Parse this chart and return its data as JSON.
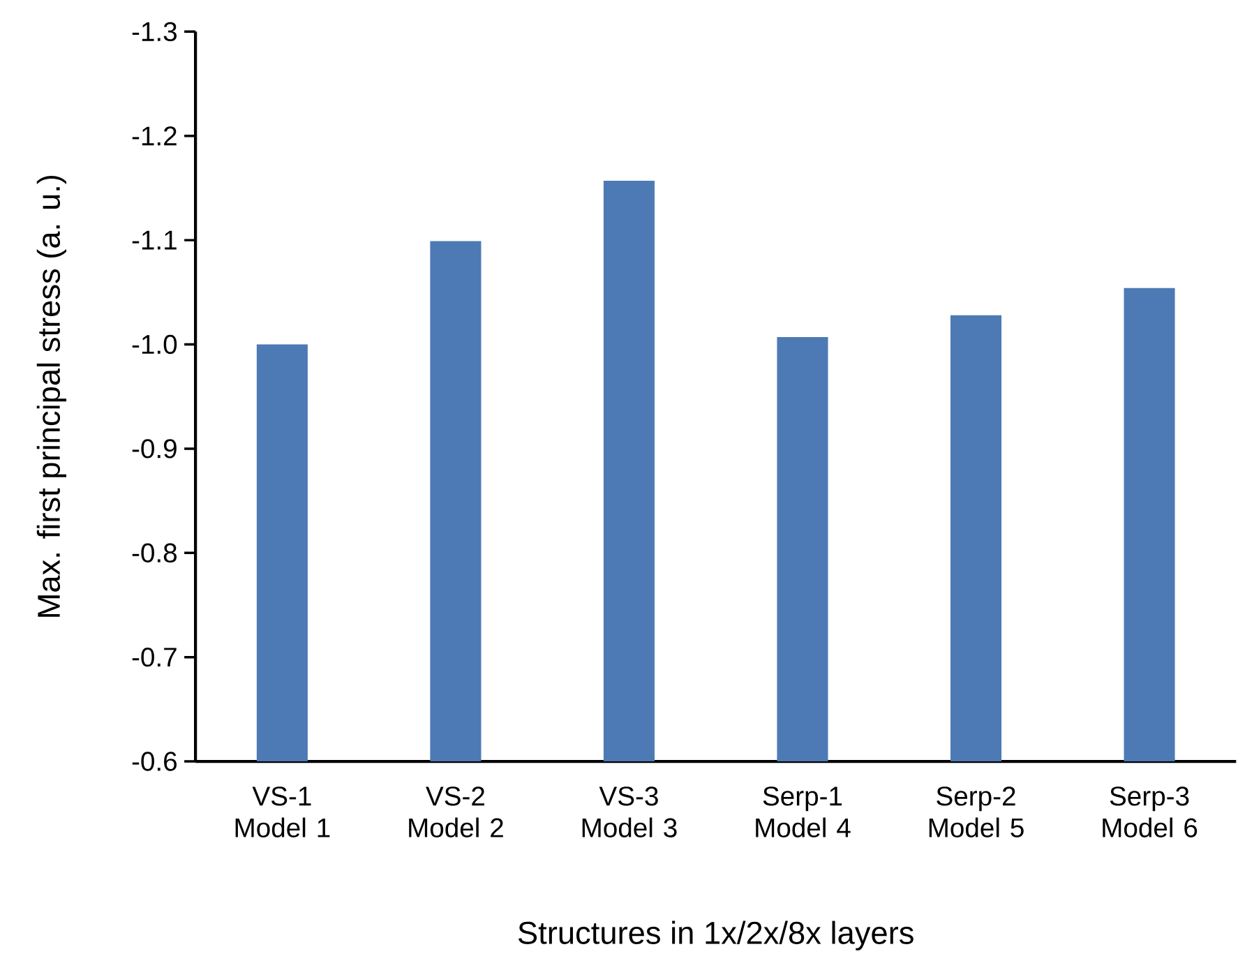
{
  "chart_data": {
    "type": "bar",
    "xlabel": "Structures in 1x/2x/8x layers",
    "ylabel": "Max. first principal stress (a. u.)",
    "categories": [
      "VS-1 Model 1",
      "VS-2 Model 2",
      "VS-3 Model 3",
      "Serp-1 Model 4",
      "Serp-2 Model 5",
      "Serp-3 Model 6"
    ],
    "values": [
      -1.0,
      -1.099,
      -1.157,
      -1.007,
      -1.028,
      -1.054
    ],
    "color": "#4d7ab4",
    "ylim": [
      -0.6,
      -1.3
    ],
    "yticks": [
      {
        "value": -0.6,
        "label": "-0.6"
      },
      {
        "value": -0.7,
        "label": "-0.7"
      },
      {
        "value": -0.8,
        "label": "-0.8"
      },
      {
        "value": -0.9,
        "label": "-0.9"
      },
      {
        "value": -1.0,
        "label": "-1.0"
      },
      {
        "value": -1.1,
        "label": "-1.1"
      },
      {
        "value": -1.2,
        "label": "-1.2"
      },
      {
        "value": -1.3,
        "label": "-1.3"
      }
    ],
    "grid": false
  }
}
